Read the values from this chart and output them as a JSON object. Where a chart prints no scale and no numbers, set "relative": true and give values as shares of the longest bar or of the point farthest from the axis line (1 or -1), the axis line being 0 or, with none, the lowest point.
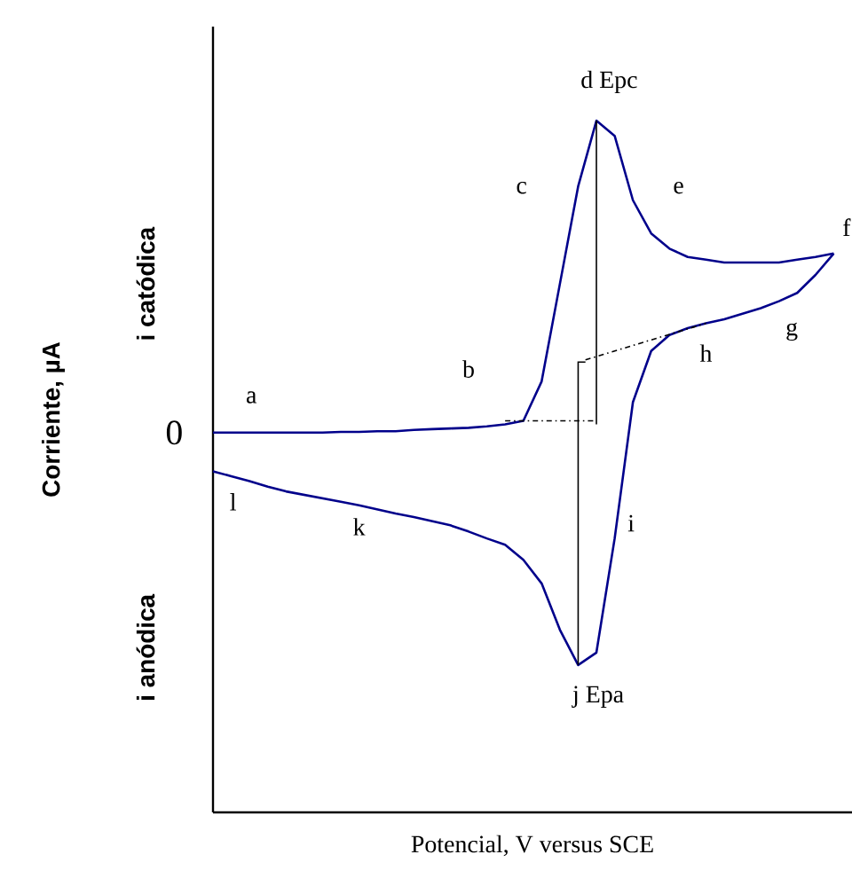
{
  "chart_data": {
    "type": "line",
    "relative": true,
    "xlabel": "Potencial, V versus SCE",
    "categories": [
      null,
      null,
      null,
      null,
      null,
      null,
      null,
      null,
      null,
      null,
      null,
      null,
      null,
      null,
      null,
      null,
      null,
      null,
      null,
      null,
      null,
      null,
      null,
      null,
      null,
      null,
      null,
      null,
      null,
      null,
      null,
      null,
      null,
      null,
      null
    ],
    "series": [
      {
        "color": "#00008b",
        "values": [
          0.549,
          0.549,
          0.549,
          0.549,
          0.549,
          0.549,
          0.549,
          0.55,
          0.55,
          0.551,
          0.551,
          0.553,
          0.554,
          0.555,
          0.556,
          0.558,
          0.561,
          0.566,
          0.623,
          0.764,
          0.905,
          1,
          0.978,
          0.885,
          0.837,
          0.815,
          0.803,
          0.799,
          0.795,
          0.795,
          0.795,
          0.795,
          0.799,
          0.803,
          0.808
        ]
      },
      {
        "color": "#00008b",
        "values": [
          0.493,
          0.486,
          0.479,
          0.471,
          0.464,
          0.459,
          0.454,
          0.449,
          0.444,
          0.438,
          0.432,
          0.427,
          0.421,
          0.415,
          0.406,
          0.396,
          0.387,
          0.365,
          0.331,
          0.264,
          0.213,
          0.231,
          0.396,
          0.593,
          0.667,
          0.69,
          0.7,
          0.707,
          0.713,
          0.721,
          0.729,
          0.739,
          0.751,
          0.777,
          0.808
        ]
      }
    ],
    "ref_lines": [
      {
        "axis": "y",
        "value": 0.566,
        "color": "#000000",
        "line_style": "dashed"
      }
    ],
    "annotations": [
      "0",
      "a",
      "b",
      "c",
      "d  Epc",
      "e",
      "f",
      "g",
      "h",
      "i",
      "j  Epa",
      "k",
      "l",
      "i catódica",
      "i anódica",
      "Corriente, µA"
    ]
  }
}
